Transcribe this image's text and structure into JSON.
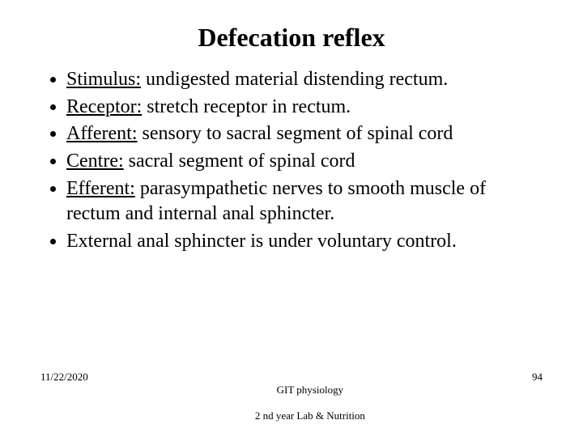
{
  "title": "Defecation reflex",
  "bullets": [
    {
      "term": "Stimulus:",
      "rest": " undigested material distending rectum."
    },
    {
      "term": "Receptor:",
      "rest": " stretch receptor in rectum."
    },
    {
      "term": "Afferent:",
      "rest": " sensory to sacral segment of spinal cord"
    },
    {
      "term": "Centre:",
      "rest": " sacral segment of spinal cord"
    },
    {
      "term": "Efferent:",
      "rest": " parasympathetic nerves to smooth muscle of rectum and internal anal sphincter."
    },
    {
      "term": "",
      "rest": "External anal sphincter is under voluntary control."
    }
  ],
  "footer": {
    "date": "11/22/2020",
    "center_line1": "GIT physiology",
    "center_line2": "2 nd year Lab & Nutrition",
    "page": "94"
  },
  "style": {
    "background_color": "#ffffff",
    "text_color": "#000000",
    "title_fontsize": 32,
    "body_fontsize": 24,
    "footer_fontsize": 13,
    "font_family": "Times New Roman"
  }
}
